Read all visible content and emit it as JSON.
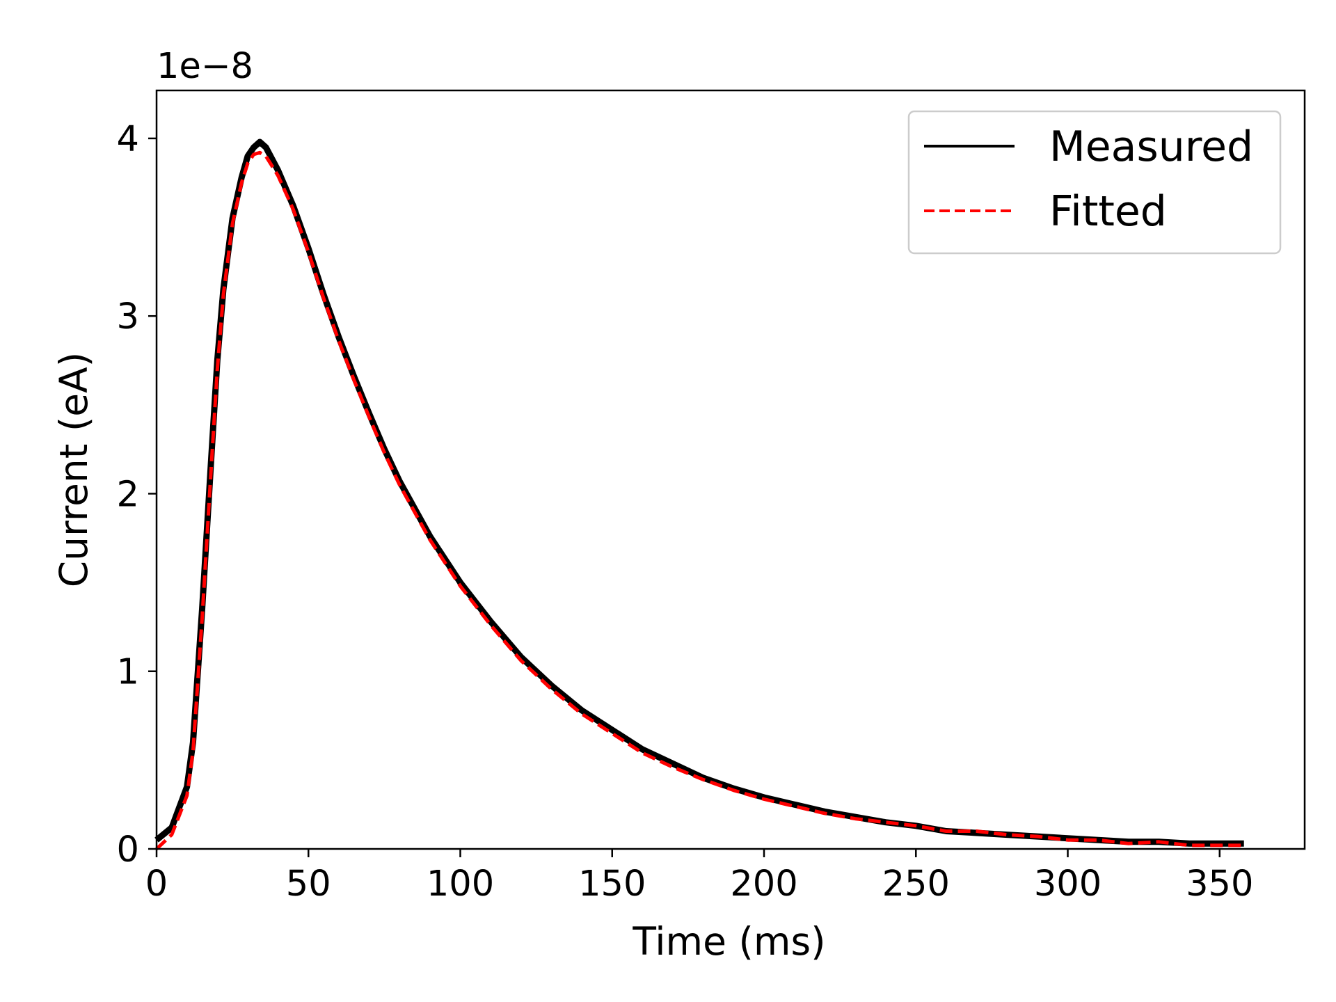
{
  "chart_data": {
    "type": "line",
    "title": "",
    "xlabel": "Time (ms)",
    "ylabel": "Current (eA)",
    "offset_label": "1e−8",
    "xlim": [
      0,
      378
    ],
    "ylim": [
      0,
      4.27
    ],
    "x_ticks": [
      0,
      50,
      100,
      150,
      200,
      250,
      300,
      350
    ],
    "x_tick_labels": [
      "0",
      "50",
      "100",
      "150",
      "200",
      "250",
      "300",
      "350"
    ],
    "y_ticks": [
      0,
      1,
      2,
      3,
      4
    ],
    "y_tick_labels": [
      "0",
      "1",
      "2",
      "3",
      "4"
    ],
    "grid": false,
    "legend_position": "top-right",
    "series": [
      {
        "name": "Measured",
        "color": "#000000",
        "style": "solid",
        "x": [
          0,
          5,
          10,
          12,
          15,
          18,
          20,
          22,
          25,
          28,
          30,
          32,
          34,
          36,
          40,
          45,
          50,
          55,
          60,
          65,
          70,
          75,
          80,
          90,
          100,
          110,
          120,
          130,
          140,
          150,
          160,
          170,
          180,
          190,
          200,
          210,
          220,
          230,
          240,
          250,
          260,
          270,
          280,
          290,
          300,
          310,
          320,
          330,
          340,
          350,
          358
        ],
        "y": [
          0.05,
          0.12,
          0.35,
          0.6,
          1.35,
          2.2,
          2.75,
          3.15,
          3.55,
          3.78,
          3.9,
          3.95,
          3.98,
          3.95,
          3.82,
          3.62,
          3.38,
          3.12,
          2.88,
          2.66,
          2.45,
          2.25,
          2.07,
          1.76,
          1.5,
          1.28,
          1.08,
          0.92,
          0.78,
          0.67,
          0.56,
          0.48,
          0.4,
          0.34,
          0.29,
          0.25,
          0.21,
          0.18,
          0.15,
          0.13,
          0.1,
          0.09,
          0.08,
          0.07,
          0.06,
          0.05,
          0.04,
          0.04,
          0.03,
          0.03,
          0.03
        ]
      },
      {
        "name": "Fitted",
        "color": "#ff0000",
        "style": "dashed",
        "x": [
          0,
          5,
          10,
          12,
          15,
          18,
          20,
          22,
          25,
          28,
          30,
          32,
          34,
          36,
          40,
          45,
          50,
          55,
          60,
          65,
          70,
          75,
          80,
          90,
          100,
          110,
          120,
          130,
          140,
          150,
          160,
          170,
          180,
          190,
          200,
          210,
          220,
          230,
          240,
          250,
          260,
          270,
          280,
          290,
          300,
          310,
          320,
          330,
          340,
          350,
          358
        ],
        "y": [
          0.0,
          0.08,
          0.3,
          0.55,
          1.3,
          2.15,
          2.7,
          3.12,
          3.52,
          3.75,
          3.86,
          3.91,
          3.92,
          3.9,
          3.79,
          3.6,
          3.36,
          3.1,
          2.86,
          2.64,
          2.43,
          2.23,
          2.05,
          1.74,
          1.48,
          1.26,
          1.06,
          0.9,
          0.76,
          0.65,
          0.54,
          0.46,
          0.39,
          0.33,
          0.28,
          0.24,
          0.2,
          0.17,
          0.15,
          0.13,
          0.1,
          0.1,
          0.08,
          0.07,
          0.05,
          0.05,
          0.03,
          0.04,
          0.02,
          0.02,
          0.02
        ]
      }
    ]
  }
}
